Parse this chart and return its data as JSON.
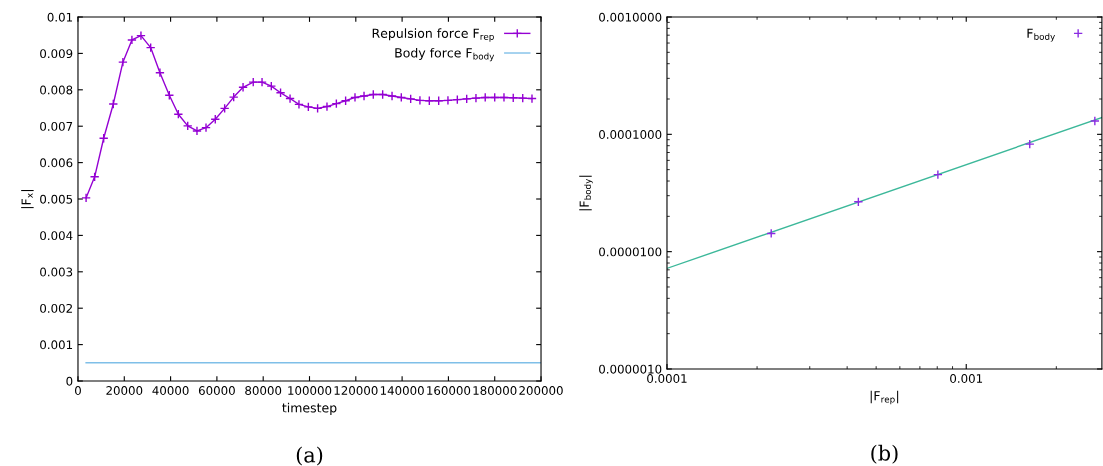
{
  "chart_data": [
    {
      "type": "line",
      "xlabel": "timestep",
      "ylabel": "|F$_{x}$|",
      "xlim": [
        0,
        200000
      ],
      "ylim": [
        0,
        0.01
      ],
      "xticks": [
        0,
        20000,
        40000,
        60000,
        80000,
        100000,
        120000,
        140000,
        160000,
        180000,
        200000
      ],
      "yticks": [
        0,
        0.001,
        0.002,
        0.003,
        0.004,
        0.005,
        0.006,
        0.007,
        0.008,
        0.009,
        0.01
      ],
      "legend": "top right",
      "grid": false,
      "annotations": [
        "(a)"
      ],
      "series": [
        {
          "name": "Repulsion force F$_{rep}$",
          "marker": "cross",
          "color": "#9400d3",
          "x": [
            3500,
            7200,
            11100,
            15250,
            19400,
            23300,
            27200,
            31400,
            35400,
            39450,
            43350,
            47400,
            51400,
            55300,
            59300,
            63350,
            67250,
            71300,
            75700,
            79500,
            83500,
            87500,
            91600,
            95450,
            99500,
            103500,
            107550,
            111600,
            115600,
            119650,
            123550,
            127550,
            131600,
            135650,
            139650,
            143700,
            147700,
            151750,
            155800,
            159800,
            163850,
            167900,
            171900,
            175900,
            180000,
            184000,
            188000,
            192100,
            196100
          ],
          "values": [
            0.00503,
            0.00561,
            0.00667,
            0.00761,
            0.00876,
            0.00937,
            0.00949,
            0.00916,
            0.00847,
            0.00785,
            0.00733,
            0.00701,
            0.00687,
            0.00696,
            0.00719,
            0.00749,
            0.0078,
            0.00807,
            0.00821,
            0.00821,
            0.0081,
            0.00792,
            0.00776,
            0.0076,
            0.00753,
            0.00749,
            0.00754,
            0.00762,
            0.0077,
            0.00779,
            0.00783,
            0.00787,
            0.00787,
            0.00783,
            0.00779,
            0.00775,
            0.00771,
            0.0077,
            0.0077,
            0.00771,
            0.00773,
            0.00775,
            0.00777,
            0.00779,
            0.00779,
            0.00779,
            0.00778,
            0.00777,
            0.00776
          ]
        },
        {
          "name": "Body force F$_{body}$",
          "marker": "none",
          "color": "#7fbfe8",
          "x": [
            3500,
            200000
          ],
          "values": [
            0.0005,
            0.0005
          ]
        }
      ]
    },
    {
      "type": "scatter",
      "log": "xy",
      "xlabel": "|F$_{rep}$|",
      "ylabel": "|F$_{body}$|",
      "xlim": [
        0.0001,
        0.00284
      ],
      "ylim": [
        1e-06,
        0.001
      ],
      "xticks": [
        {
          "value": 0.0001,
          "label": "0.0001"
        },
        {
          "value": 0.001,
          "label": "0.001"
        }
      ],
      "yticks": [
        {
          "value": 1e-06,
          "label": "0.0000010"
        },
        {
          "value": 1e-05,
          "label": "0.0000100"
        },
        {
          "value": 0.0001,
          "label": "0.0001000"
        },
        {
          "value": 0.001,
          "label": "0.0010000"
        }
      ],
      "legend": "top right",
      "grid": false,
      "annotations": [
        "(b)"
      ],
      "series": [
        {
          "type": "line",
          "marker": "none",
          "color": "#3cb89a",
          "x": [
            0.0001,
            0.00284
          ],
          "values": [
            7.2e-06,
            0.000139
          ]
        },
        {
          "name": "F$_{body}$",
          "marker": "cross",
          "color": "#8a2be2",
          "x": [
            0.000223,
            0.000436,
            0.000804,
            0.00163,
            0.00269
          ],
          "values": [
            1.43e-05,
            2.66e-05,
            4.53e-05,
            8.25e-05,
            0.00013
          ]
        }
      ]
    }
  ]
}
